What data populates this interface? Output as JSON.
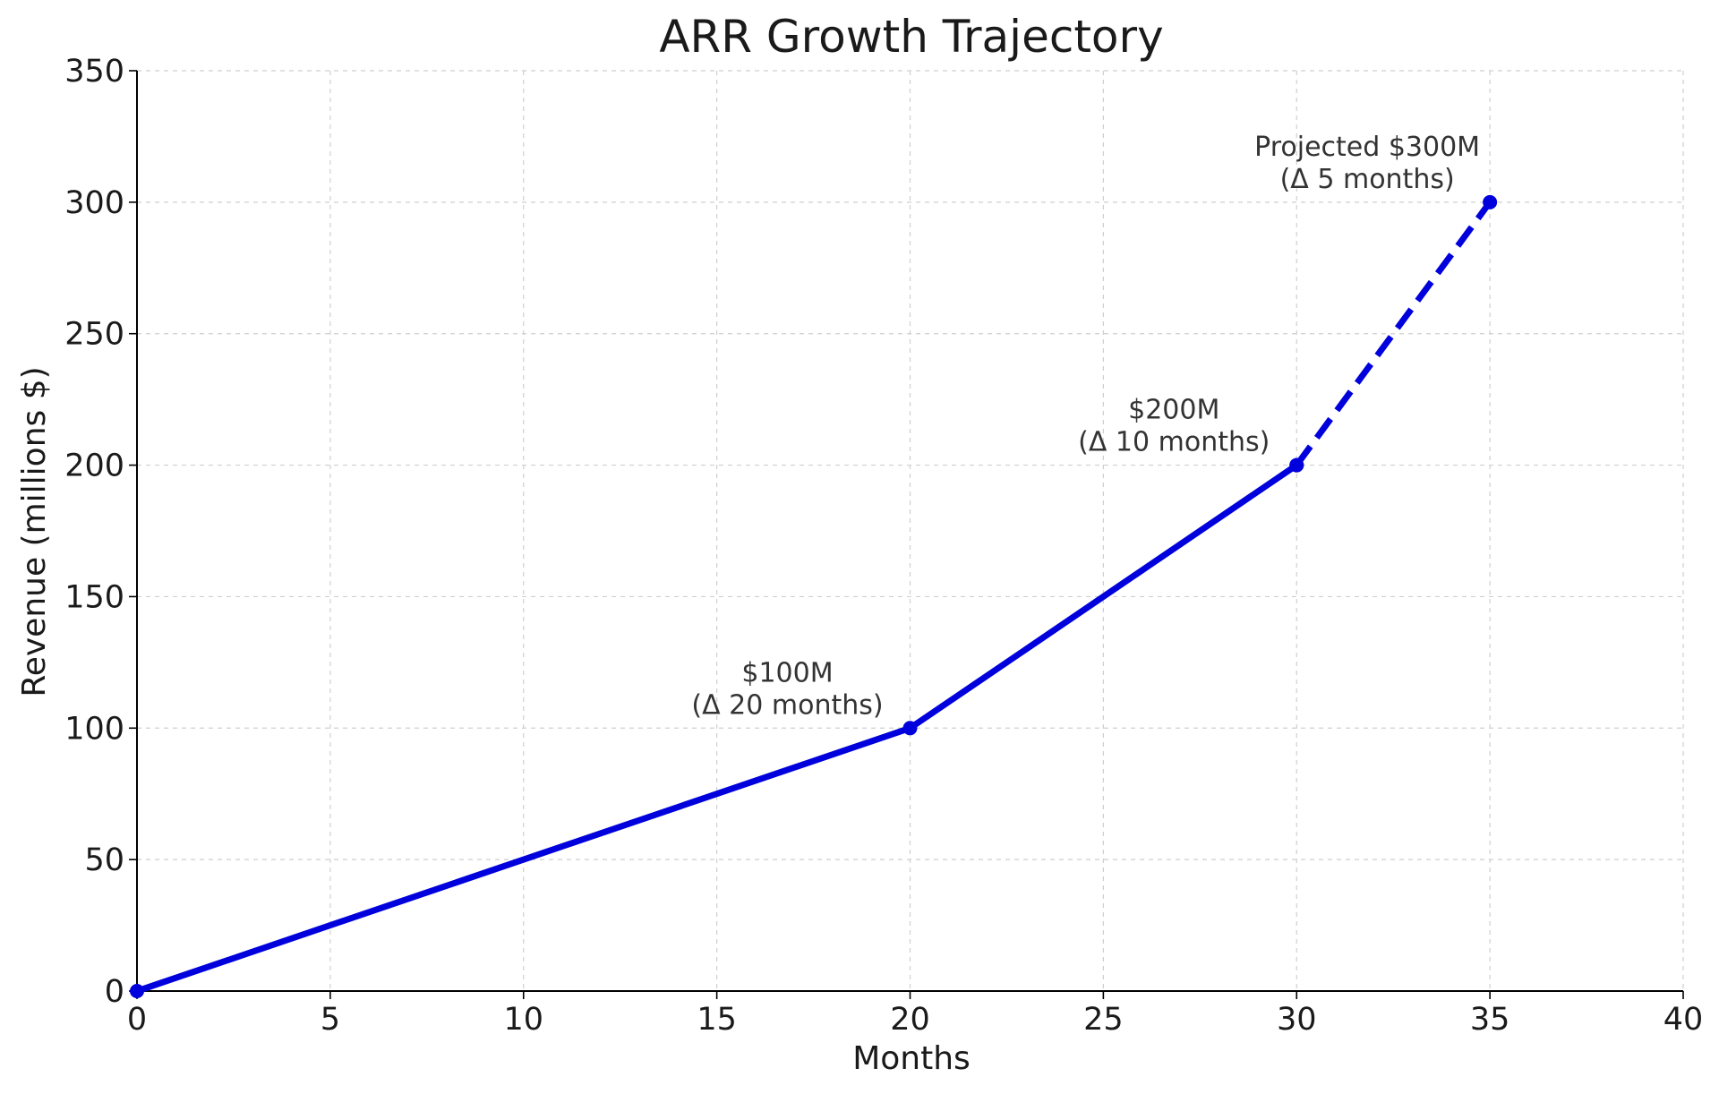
{
  "chart_data": {
    "type": "line",
    "title": "ARR Growth Trajectory",
    "xlabel": "Months",
    "ylabel": "Revenue (millions $)",
    "xlim": [
      0,
      40
    ],
    "ylim": [
      0,
      350
    ],
    "xticks": [
      0,
      5,
      10,
      15,
      20,
      25,
      30,
      35,
      40
    ],
    "yticks": [
      0,
      50,
      100,
      150,
      200,
      250,
      300,
      350
    ],
    "grid": true,
    "series": [
      {
        "style": "solid",
        "color": "#0000dd",
        "x": [
          0,
          20,
          30
        ],
        "y": [
          0,
          100,
          200
        ]
      },
      {
        "style": "dashed",
        "color": "#0000dd",
        "x": [
          30,
          35
        ],
        "y": [
          200,
          300
        ]
      }
    ],
    "annotations": [
      {
        "x": 20,
        "y": 100,
        "lines": [
          "$100M",
          "(Δ 20 months)"
        ]
      },
      {
        "x": 30,
        "y": 200,
        "lines": [
          "$200M",
          "(Δ 10 months)"
        ]
      },
      {
        "x": 35,
        "y": 300,
        "lines": [
          "Projected $300M",
          "(Δ 5 months)"
        ]
      }
    ]
  }
}
